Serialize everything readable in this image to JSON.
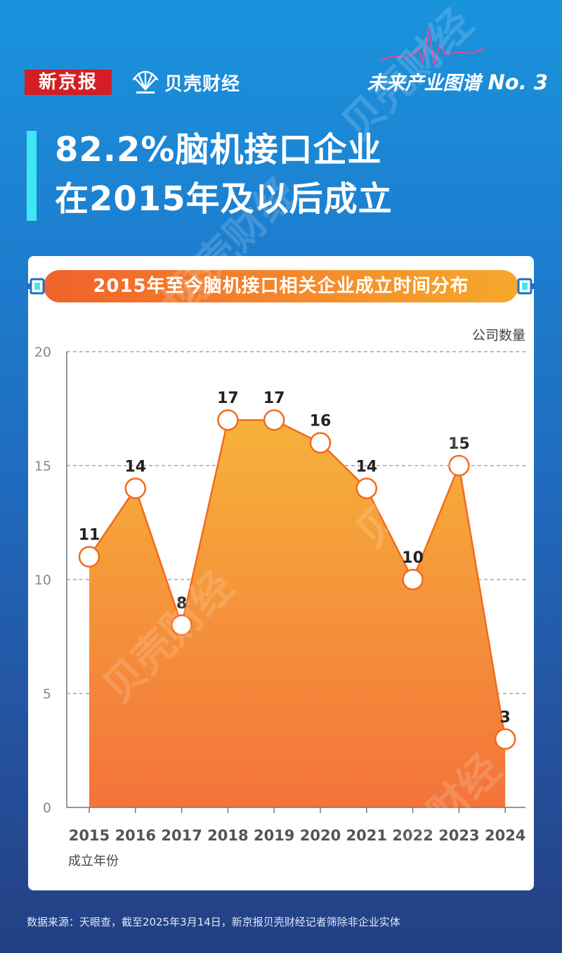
{
  "header": {
    "brand_primary": "新京报",
    "brand_secondary": "贝壳财经",
    "series_label": "未来产业图谱",
    "series_number": "No. 3"
  },
  "headline": {
    "line1": "82.2%脑机接口企业",
    "line2": "在2015年及以后成立"
  },
  "chart_data": {
    "type": "area",
    "title": "2015年至今脑机接口相关企业成立时间分布",
    "ylabel": "公司数量",
    "xlabel": "成立年份",
    "categories": [
      "2015",
      "2016",
      "2017",
      "2018",
      "2019",
      "2020",
      "2021",
      "2022",
      "2023",
      "2024"
    ],
    "values": [
      11,
      14,
      8,
      17,
      17,
      16,
      14,
      10,
      15,
      3
    ],
    "data_labels": [
      "11",
      "14",
      "8",
      "17",
      "17",
      "16",
      "14",
      "10",
      "15",
      "3"
    ],
    "ylim": [
      0,
      20
    ],
    "yticks": [
      "0",
      "5",
      "10",
      "15",
      "20"
    ],
    "grid": true,
    "colors": {
      "line": "#f36a1c",
      "fill_top": "#f6b23a",
      "fill_bottom": "#f4733a",
      "marker_fill": "#ffffff"
    }
  },
  "footer": {
    "source": "数据来源：天眼查，截至2025年3月14日，新京报贝壳财经记者筛除非企业实体"
  },
  "watermark": "贝壳财经"
}
